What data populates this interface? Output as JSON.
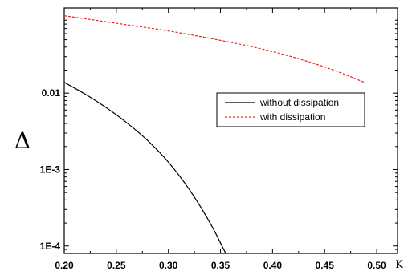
{
  "chart_data": {
    "type": "line",
    "title": "",
    "xlabel": "K",
    "ylabel": "Δ",
    "x_scale": "linear",
    "y_scale": "log",
    "xlim": [
      0.2,
      0.52
    ],
    "ylim": [
      8e-05,
      0.13
    ],
    "x_ticks": [
      0.2,
      0.25,
      0.3,
      0.35,
      0.4,
      0.45,
      0.5
    ],
    "x_tick_labels": [
      "0.20",
      "0.25",
      "0.30",
      "0.35",
      "0.40",
      "0.45",
      "0.50"
    ],
    "y_ticks": [
      0.01,
      0.001,
      0.0001
    ],
    "y_tick_labels": [
      "0.01",
      "1E-3",
      "1E-4"
    ],
    "grid": false,
    "legend_position": "center-right",
    "series": [
      {
        "name": "without dissipation",
        "color": "#000000",
        "dash": "solid",
        "x": [
          0.2,
          0.22,
          0.24,
          0.26,
          0.28,
          0.3,
          0.32,
          0.34,
          0.355
        ],
        "y": [
          0.0138,
          0.0097,
          0.0065,
          0.0041,
          0.0024,
          0.00125,
          0.00055,
          0.0002,
          8e-05
        ]
      },
      {
        "name": "with dissipation",
        "color": "#e8221e",
        "dash": "dashed",
        "x": [
          0.2,
          0.25,
          0.3,
          0.35,
          0.4,
          0.45,
          0.49
        ],
        "y": [
          0.103,
          0.082,
          0.065,
          0.049,
          0.035,
          0.022,
          0.0135
        ]
      }
    ]
  }
}
